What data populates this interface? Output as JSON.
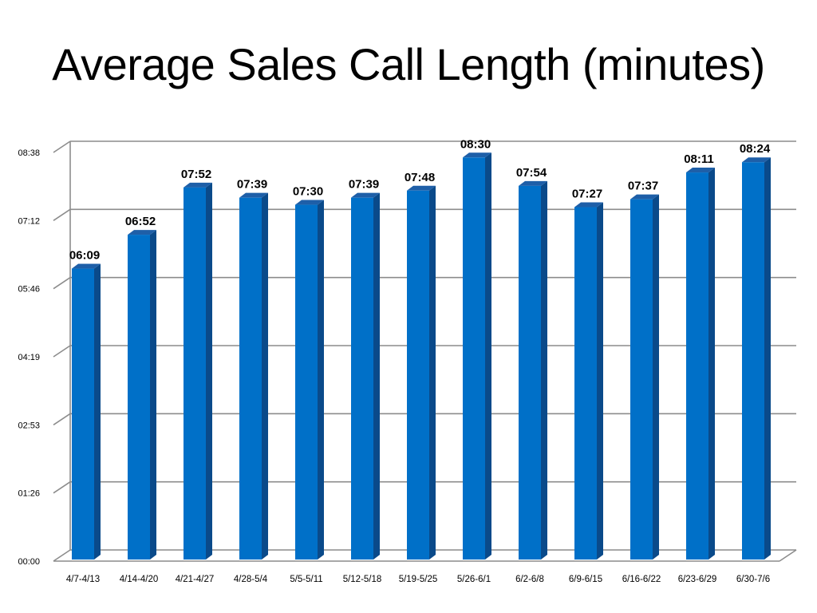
{
  "title": "Average Sales Call Length (minutes)",
  "colors": {
    "bar_front": "#0070C8",
    "bar_side": "#0A4A8A",
    "bar_top": "#1E5FA8",
    "grid": "#8C8C8C"
  },
  "chart_data": {
    "type": "bar",
    "title": "Average Sales Call Length (minutes)",
    "value_unit": "mm:ss",
    "categories": [
      "4/7-4/13",
      "4/14-4/20",
      "4/21-4/27",
      "4/28-5/4",
      "5/5-5/11",
      "5/12-5/18",
      "5/19-5/25",
      "5/26-6/1",
      "6/2-6/8",
      "6/9-6/15",
      "6/16-6/22",
      "6/23-6/29",
      "6/30-7/6"
    ],
    "values_seconds": [
      369,
      412,
      472,
      459,
      450,
      459,
      468,
      510,
      474,
      447,
      457,
      491,
      504
    ],
    "data_labels": [
      "06:09",
      "06:52",
      "07:52",
      "07:39",
      "07:30",
      "07:39",
      "07:48",
      "08:30",
      "07:54",
      "07:27",
      "07:37",
      "08:11",
      "08:24"
    ],
    "y_ticks": [
      "00:00",
      "01:26",
      "02:53",
      "04:19",
      "05:46",
      "07:12",
      "08:38"
    ],
    "ylim_seconds": [
      0,
      518.4
    ],
    "grid": true,
    "legend": "none",
    "style": "3d-column"
  }
}
